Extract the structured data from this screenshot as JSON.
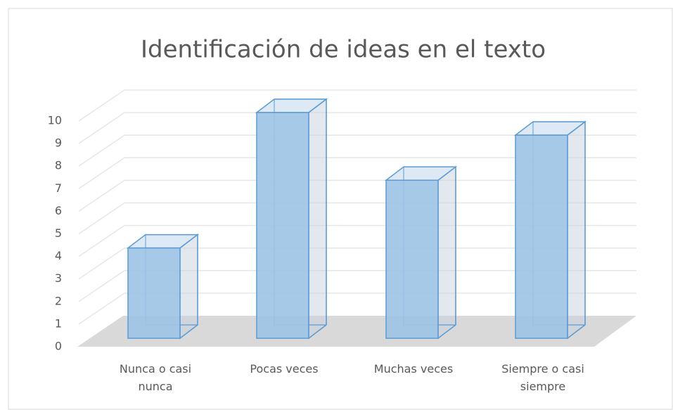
{
  "chart_data": {
    "type": "bar3d",
    "title": "Identificación de ideas en el texto",
    "categories": [
      "Nunca o casi nunca",
      "Pocas veces",
      "Muchas veces",
      "Siempre o casi siempre"
    ],
    "values": [
      4,
      10,
      7,
      9
    ],
    "color": "#9dc3e6",
    "ylim": [
      0,
      10
    ],
    "yticks": [
      0,
      1,
      2,
      3,
      4,
      5,
      6,
      7,
      8,
      9,
      10
    ],
    "grid": true
  }
}
